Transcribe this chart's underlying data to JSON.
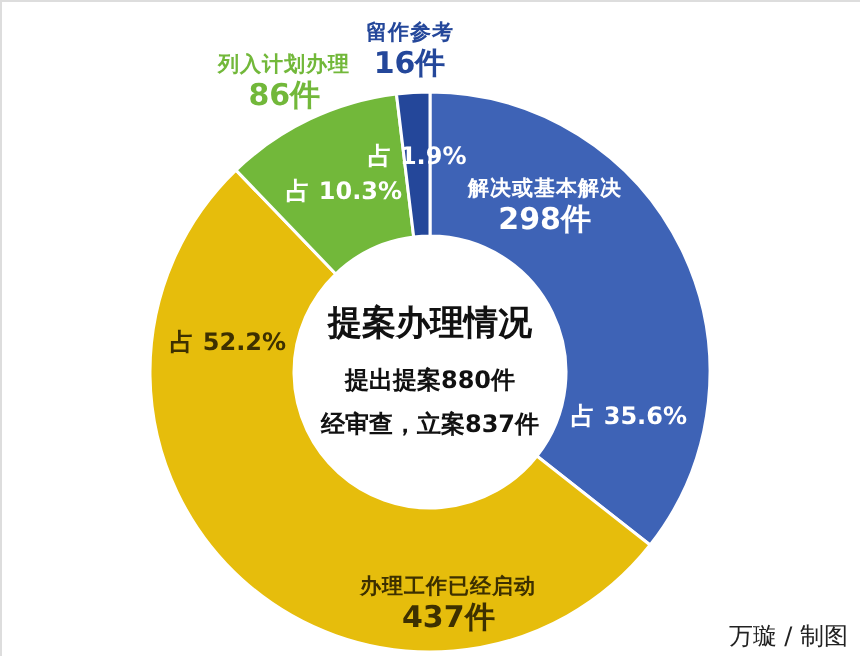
{
  "chart_data": {
    "type": "donut",
    "title": "提案办理情况",
    "subtitle": "提出提案880件",
    "categories": [
      "解决或基本解决",
      "办理工作已经启动",
      "列入计划办理",
      "留作参考"
    ],
    "values": [
      298,
      437,
      86,
      16
    ],
    "colors": [
      "#3e63b6",
      "#e6bd0c",
      "#72b83a",
      "#24479a"
    ],
    "value_labels": [
      "298件",
      "437件",
      "86件",
      "16件"
    ],
    "annotations": [
      "占 35.6%",
      "占 52.2%",
      "占 10.3%",
      "占 1.9%",
      "经审查，立案837件",
      "万璇 / 制图"
    ]
  }
}
